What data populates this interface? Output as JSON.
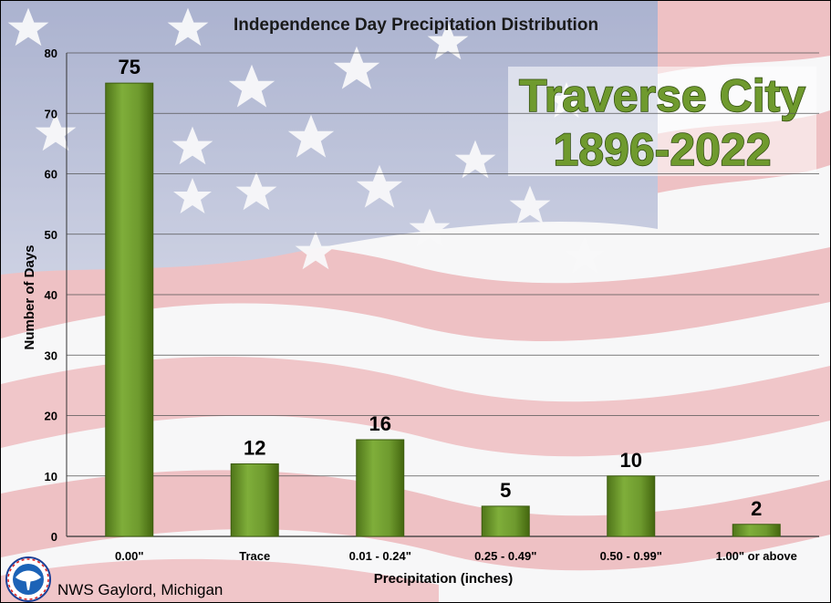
{
  "chart_data": {
    "type": "bar",
    "title": "Independence Day Precipitation Distribution",
    "xlabel": "Precipitation (inches)",
    "ylabel": "Number of Days",
    "categories": [
      "0.00\"",
      "Trace",
      "0.01 - 0.24\"",
      "0.25 - 0.49\"",
      "0.50 - 0.99\"",
      "1.00\" or above"
    ],
    "values": [
      75,
      12,
      16,
      5,
      10,
      2
    ],
    "ylim": [
      0,
      80
    ],
    "yticks": [
      0,
      10,
      20,
      30,
      40,
      50,
      60,
      70,
      80
    ],
    "grid": true,
    "data_labels": true,
    "bar_color": "#6e9a2e"
  },
  "callout": {
    "line1": "Traverse City",
    "line2": "1896-2022",
    "color": "#6f9a2e"
  },
  "footer": {
    "text": "NWS Gaylord, Michigan",
    "logo": "nws-logo-icon"
  },
  "background": {
    "description_icon": "american-flag-background"
  },
  "colors": {
    "flag_red": "#e8a9ad",
    "flag_blue": "#9aa3c6",
    "flag_white": "#f4f4f6",
    "grid": "#555555"
  }
}
